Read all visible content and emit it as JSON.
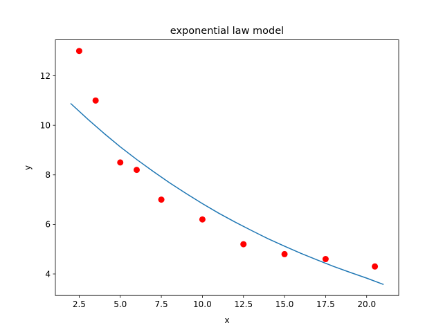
{
  "chart_data": {
    "type": "scatter",
    "title": "exponential law model",
    "xlabel": "x",
    "ylabel": "y",
    "xlim": [
      1.05,
      21.95
    ],
    "ylim": [
      3.13,
      13.45
    ],
    "grid": false,
    "x_ticks": [
      2.5,
      5.0,
      7.5,
      10.0,
      12.5,
      15.0,
      17.5,
      20.0
    ],
    "x_tick_labels": [
      "2.5",
      "5.0",
      "7.5",
      "10.0",
      "12.5",
      "15.0",
      "17.5",
      "20.0"
    ],
    "y_ticks": [
      4,
      6,
      8,
      10,
      12
    ],
    "y_tick_labels": [
      "4",
      "6",
      "8",
      "10",
      "12"
    ],
    "series": [
      {
        "kind": "scatter",
        "color": "#ff0000",
        "x": [
          2.5,
          3.5,
          5.0,
          6.0,
          7.5,
          10.0,
          12.5,
          15.0,
          17.5,
          20.5
        ],
        "y": [
          13.0,
          11.0,
          8.5,
          8.2,
          7.0,
          6.2,
          5.2,
          4.8,
          4.6,
          4.3
        ]
      },
      {
        "kind": "line",
        "color": "#1f77b4",
        "x": [
          2.0,
          3.0,
          4.0,
          5.0,
          6.0,
          7.0,
          8.0,
          9.0,
          10.0,
          11.0,
          12.0,
          13.0,
          14.0,
          15.0,
          16.0,
          17.0,
          18.0,
          19.0,
          20.0,
          21.0
        ],
        "y": [
          10.87,
          10.26,
          9.68,
          9.13,
          8.62,
          8.14,
          7.68,
          7.25,
          6.84,
          6.45,
          6.09,
          5.75,
          5.42,
          5.12,
          4.83,
          4.56,
          4.3,
          4.06,
          3.83,
          3.58
        ]
      }
    ]
  }
}
